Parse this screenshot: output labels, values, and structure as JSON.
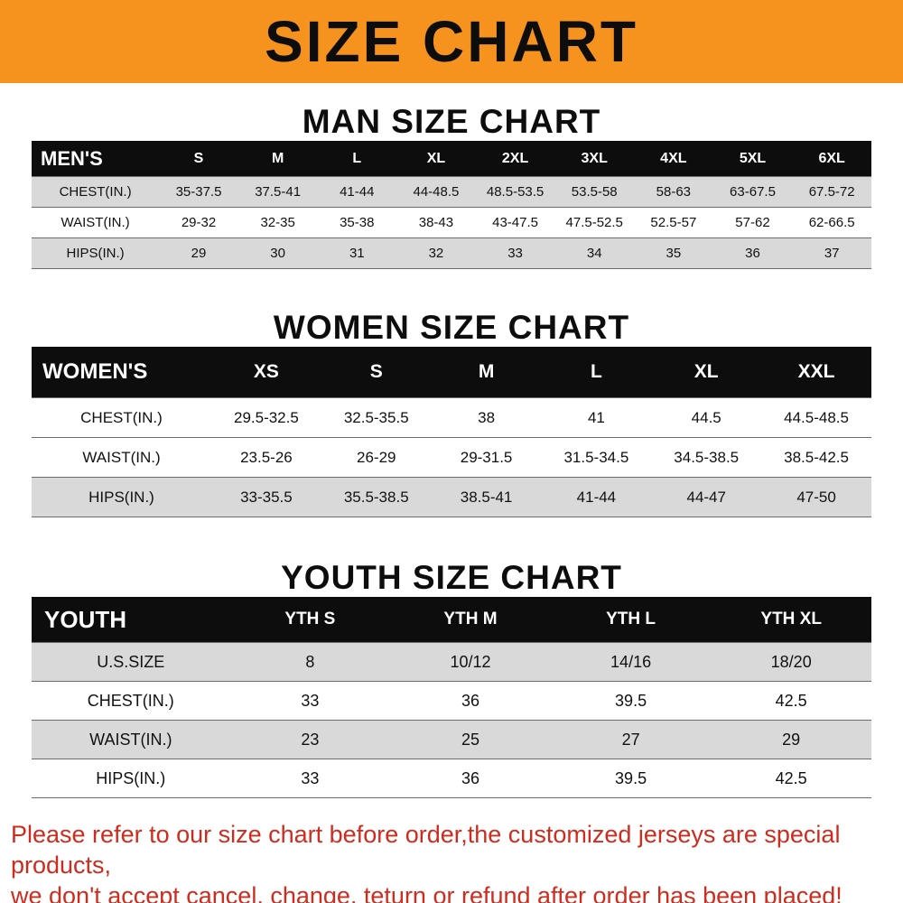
{
  "banner": {
    "title": "SIZE CHART",
    "bg_color": "#f6921e",
    "text_color": "#0d0d0d"
  },
  "colors": {
    "table_header_bg": "#0d0d0d",
    "row_shade": "#d9d9d9",
    "footer_text": "#cf2b1e"
  },
  "sections": [
    {
      "title": "MAN SIZE CHART",
      "table": {
        "header_label": "MEN'S",
        "columns": [
          "S",
          "M",
          "L",
          "XL",
          "2XL",
          "3XL",
          "4XL",
          "5XL",
          "6XL"
        ],
        "rows": [
          {
            "label": "CHEST(IN.)",
            "values": [
              "35-37.5",
              "37.5-41",
              "41-44",
              "44-48.5",
              "48.5-53.5",
              "53.5-58",
              "58-63",
              "63-67.5",
              "67.5-72"
            ]
          },
          {
            "label": "WAIST(IN.)",
            "values": [
              "29-32",
              "32-35",
              "35-38",
              "38-43",
              "43-47.5",
              "47.5-52.5",
              "52.5-57",
              "57-62",
              "62-66.5"
            ]
          },
          {
            "label": "HIPS(IN.)",
            "values": [
              "29",
              "30",
              "31",
              "32",
              "33",
              "34",
              "35",
              "36",
              "37"
            ]
          }
        ]
      }
    },
    {
      "title": "WOMEN SIZE CHART",
      "table": {
        "header_label": "WOMEN'S",
        "columns": [
          "XS",
          "S",
          "M",
          "L",
          "XL",
          "XXL"
        ],
        "rows": [
          {
            "label": "CHEST(IN.)",
            "values": [
              "29.5-32.5",
              "32.5-35.5",
              "38",
              "41",
              "44.5",
              "44.5-48.5"
            ]
          },
          {
            "label": "WAIST(IN.)",
            "values": [
              "23.5-26",
              "26-29",
              "29-31.5",
              "31.5-34.5",
              "34.5-38.5",
              "38.5-42.5"
            ]
          },
          {
            "label": "HIPS(IN.)",
            "values": [
              "33-35.5",
              "35.5-38.5",
              "38.5-41",
              "41-44",
              "44-47",
              "47-50"
            ]
          }
        ]
      }
    },
    {
      "title": "YOUTH SIZE CHART",
      "table": {
        "header_label": "YOUTH",
        "columns": [
          "YTH S",
          "YTH M",
          "YTH L",
          "YTH XL"
        ],
        "rows": [
          {
            "label": "U.S.SIZE",
            "values": [
              "8",
              "10/12",
              "14/16",
              "18/20"
            ]
          },
          {
            "label": "CHEST(IN.)",
            "values": [
              "33",
              "36",
              "39.5",
              "42.5"
            ]
          },
          {
            "label": "WAIST(IN.)",
            "values": [
              "23",
              "25",
              "27",
              "29"
            ]
          },
          {
            "label": "HIPS(IN.)",
            "values": [
              "33",
              "36",
              "39.5",
              "42.5"
            ]
          }
        ]
      }
    }
  ],
  "footer": {
    "line1": "Please refer to our size chart before order,the customized jerseys are special products,",
    "line2": "we don't accept cancel, change, teturn or refund after order has been placed!"
  }
}
